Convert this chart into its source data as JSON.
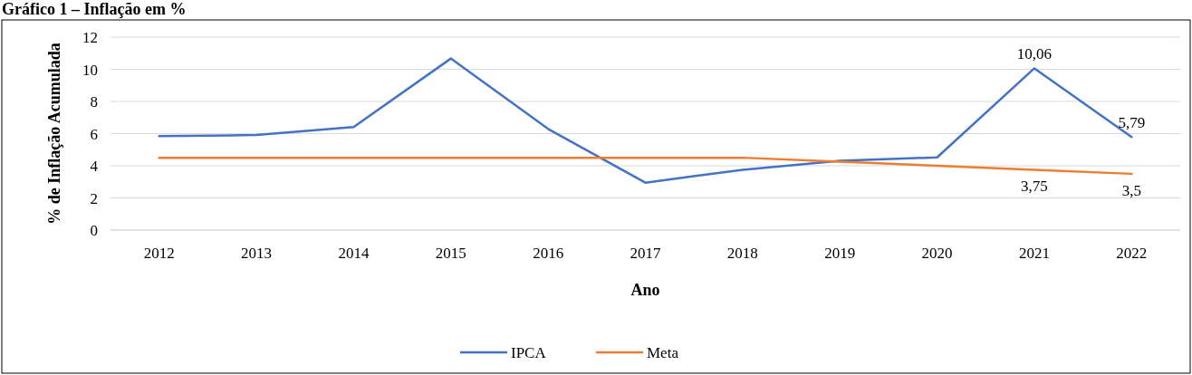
{
  "chart_data": {
    "type": "line",
    "title": "Gráfico 1 – Inflação em %",
    "xlabel": "Ano",
    "ylabel": "% de Inflação Acumulada",
    "categories": [
      "2012",
      "2013",
      "2014",
      "2015",
      "2016",
      "2017",
      "2018",
      "2019",
      "2020",
      "2021",
      "2022"
    ],
    "series": [
      {
        "name": "IPCA",
        "color": "#4472c4",
        "values": [
          5.84,
          5.91,
          6.41,
          10.67,
          6.29,
          2.95,
          3.75,
          4.31,
          4.52,
          10.06,
          5.79
        ],
        "value_labels": [
          null,
          null,
          null,
          null,
          null,
          null,
          null,
          null,
          null,
          "10,06",
          "5,79"
        ]
      },
      {
        "name": "Meta",
        "color": "#ed7d31",
        "values": [
          4.5,
          4.5,
          4.5,
          4.5,
          4.5,
          4.5,
          4.5,
          4.25,
          4.0,
          3.75,
          3.5
        ],
        "value_labels": [
          null,
          null,
          null,
          null,
          null,
          null,
          null,
          null,
          null,
          "3,75",
          "3,5"
        ]
      }
    ],
    "ylim": [
      0,
      12
    ],
    "yticks": [
      0,
      2,
      4,
      6,
      8,
      10,
      12
    ],
    "grid": "y",
    "legend": "bottom",
    "marker": "none",
    "line_style": "solid"
  }
}
